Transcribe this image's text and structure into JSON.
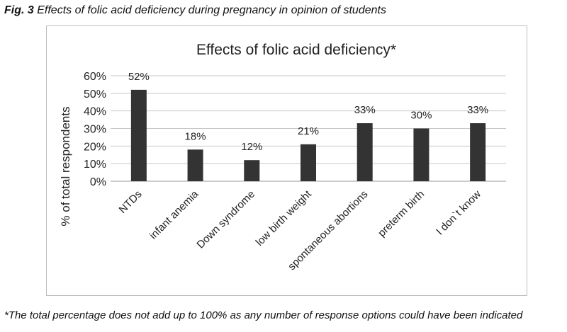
{
  "figure": {
    "caption_label": "Fig. 3",
    "caption_text": " Effects of folic acid deficiency during pregnancy in opinion of students",
    "footnote": "*The total percentage does not add up to 100% as any number of response options could have been indicated"
  },
  "chart_data": {
    "type": "bar",
    "title": "Effects of folic acid deficiency*",
    "xlabel": "",
    "ylabel": "% of total respondents",
    "categories": [
      "NTDs",
      "infant anemia",
      "Down syndrome",
      "low birth weight",
      "spontaneous abortions",
      "preterm birth",
      "I don`t know"
    ],
    "values": [
      52,
      18,
      12,
      21,
      33,
      30,
      33
    ],
    "data_labels": [
      "52%",
      "18%",
      "12%",
      "21%",
      "33%",
      "30%",
      "33%"
    ],
    "ylim": [
      0,
      60
    ],
    "yticks": [
      0,
      10,
      20,
      30,
      40,
      50,
      60
    ],
    "ytick_labels": [
      "0%",
      "10%",
      "20%",
      "30%",
      "40%",
      "50%",
      "60%"
    ],
    "grid": true,
    "legend": "none",
    "bar_color": "#333333"
  }
}
